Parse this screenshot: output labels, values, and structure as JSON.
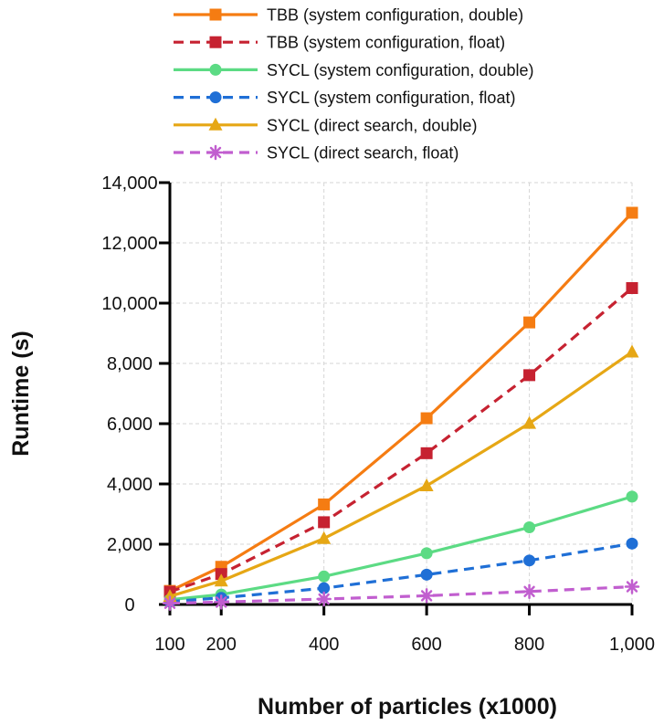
{
  "chart_data": {
    "type": "line",
    "xlabel": "Number of particles (x1000)",
    "ylabel": "Runtime (s)",
    "x": [
      100,
      200,
      400,
      600,
      800,
      1000
    ],
    "x_tick_labels": [
      "100",
      "200",
      "400",
      "600",
      "800",
      "1,000"
    ],
    "y_ticks": [
      0,
      2000,
      4000,
      6000,
      8000,
      10000,
      12000,
      14000
    ],
    "y_tick_labels": [
      "0",
      "2,000",
      "4,000",
      "6,000",
      "8,000",
      "10,000",
      "12,000",
      "14,000"
    ],
    "xlim": [
      100,
      1000
    ],
    "ylim": [
      0,
      14000
    ],
    "grid": true,
    "legend_position": "top",
    "series": [
      {
        "name": "TBB (system configuration, double)",
        "values": [
          450,
          1250,
          3320,
          6180,
          9360,
          13000
        ],
        "color": "#f57c12",
        "dashed": false,
        "marker": "square"
      },
      {
        "name": "TBB (system configuration, float)",
        "values": [
          420,
          1010,
          2730,
          5020,
          7610,
          10500
        ],
        "color": "#c62231",
        "dashed": true,
        "marker": "square"
      },
      {
        "name": "SYCL (system configuration, double)",
        "values": [
          160,
          330,
          930,
          1700,
          2560,
          3580
        ],
        "color": "#5cdb84",
        "dashed": false,
        "marker": "circle"
      },
      {
        "name": "SYCL (system configuration, float)",
        "values": [
          100,
          220,
          540,
          990,
          1460,
          2020
        ],
        "color": "#1f6fd6",
        "dashed": true,
        "marker": "circle"
      },
      {
        "name": "SYCL (direct search, double)",
        "values": [
          270,
          780,
          2190,
          3940,
          6010,
          8380
        ],
        "color": "#e6a715",
        "dashed": false,
        "marker": "triangle"
      },
      {
        "name": "SYCL (direct search, float)",
        "values": [
          40,
          80,
          180,
          290,
          430,
          590
        ],
        "color": "#c15ecf",
        "dashed": true,
        "marker": "star"
      }
    ]
  }
}
